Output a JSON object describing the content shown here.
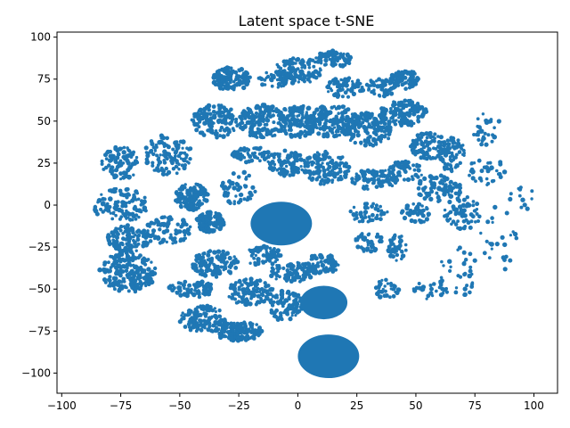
{
  "chart_data": {
    "type": "scatter",
    "title": "Latent space t-SNE",
    "xlabel": "",
    "ylabel": "",
    "xlim": [
      -102,
      110
    ],
    "ylim": [
      -112,
      103
    ],
    "x_ticks": [
      -100,
      -75,
      -50,
      -25,
      0,
      25,
      50,
      75,
      100
    ],
    "y_ticks": [
      -100,
      -75,
      -50,
      -25,
      0,
      25,
      50,
      75,
      100
    ],
    "grid": false,
    "legend": "none",
    "series_color": "#1f77b4",
    "dense_clusters": [
      {
        "cx": -7,
        "cy": -11,
        "rx": 13,
        "ry": 13
      },
      {
        "cx": 11,
        "cy": -58,
        "rx": 10,
        "ry": 10
      },
      {
        "cx": 13,
        "cy": -90,
        "rx": 13,
        "ry": 13
      }
    ],
    "regions": [
      {
        "cx": -72,
        "cy": -40,
        "rx": 12,
        "ry": 12,
        "n": 220
      },
      {
        "cx": -72,
        "cy": -20,
        "rx": 10,
        "ry": 8,
        "n": 110
      },
      {
        "cx": -75,
        "cy": 0,
        "rx": 12,
        "ry": 10,
        "n": 110
      },
      {
        "cx": -75,
        "cy": 25,
        "rx": 8,
        "ry": 10,
        "n": 90
      },
      {
        "cx": -55,
        "cy": 30,
        "rx": 10,
        "ry": 12,
        "n": 110
      },
      {
        "cx": -45,
        "cy": 5,
        "rx": 7,
        "ry": 8,
        "n": 130
      },
      {
        "cx": -55,
        "cy": -15,
        "rx": 10,
        "ry": 8,
        "n": 80
      },
      {
        "cx": -37,
        "cy": -10,
        "rx": 6,
        "ry": 6,
        "n": 110
      },
      {
        "cx": -35,
        "cy": -35,
        "rx": 10,
        "ry": 8,
        "n": 120
      },
      {
        "cx": -45,
        "cy": -50,
        "rx": 10,
        "ry": 5,
        "n": 70
      },
      {
        "cx": -40,
        "cy": -68,
        "rx": 10,
        "ry": 8,
        "n": 110
      },
      {
        "cx": -25,
        "cy": -75,
        "rx": 10,
        "ry": 6,
        "n": 140
      },
      {
        "cx": -20,
        "cy": -52,
        "rx": 10,
        "ry": 8,
        "n": 120
      },
      {
        "cx": -5,
        "cy": -60,
        "rx": 7,
        "ry": 10,
        "n": 90
      },
      {
        "cx": -2,
        "cy": -40,
        "rx": 10,
        "ry": 6,
        "n": 80
      },
      {
        "cx": 10,
        "cy": -35,
        "rx": 8,
        "ry": 6,
        "n": 70
      },
      {
        "cx": -15,
        "cy": -30,
        "rx": 8,
        "ry": 6,
        "n": 60
      },
      {
        "cx": -28,
        "cy": 75,
        "rx": 8,
        "ry": 7,
        "n": 130
      },
      {
        "cx": -10,
        "cy": 75,
        "rx": 7,
        "ry": 5,
        "n": 50
      },
      {
        "cx": 0,
        "cy": 80,
        "rx": 10,
        "ry": 8,
        "n": 110
      },
      {
        "cx": 15,
        "cy": 87,
        "rx": 8,
        "ry": 5,
        "n": 80
      },
      {
        "cx": 20,
        "cy": 70,
        "rx": 8,
        "ry": 6,
        "n": 70
      },
      {
        "cx": -35,
        "cy": 50,
        "rx": 10,
        "ry": 10,
        "n": 140
      },
      {
        "cx": -15,
        "cy": 50,
        "rx": 10,
        "ry": 10,
        "n": 150
      },
      {
        "cx": 0,
        "cy": 50,
        "rx": 8,
        "ry": 10,
        "n": 130
      },
      {
        "cx": 15,
        "cy": 50,
        "rx": 10,
        "ry": 10,
        "n": 150
      },
      {
        "cx": 30,
        "cy": 45,
        "rx": 10,
        "ry": 10,
        "n": 140
      },
      {
        "cx": 45,
        "cy": 55,
        "rx": 10,
        "ry": 8,
        "n": 120
      },
      {
        "cx": 45,
        "cy": 75,
        "rx": 6,
        "ry": 6,
        "n": 80
      },
      {
        "cx": 35,
        "cy": 70,
        "rx": 6,
        "ry": 6,
        "n": 50
      },
      {
        "cx": 55,
        "cy": 35,
        "rx": 8,
        "ry": 8,
        "n": 90
      },
      {
        "cx": 65,
        "cy": 30,
        "rx": 6,
        "ry": 10,
        "n": 70
      },
      {
        "cx": 60,
        "cy": 10,
        "rx": 10,
        "ry": 8,
        "n": 80
      },
      {
        "cx": 70,
        "cy": -5,
        "rx": 8,
        "ry": 10,
        "n": 60
      },
      {
        "cx": 45,
        "cy": 20,
        "rx": 8,
        "ry": 6,
        "n": 60
      },
      {
        "cx": 32,
        "cy": 15,
        "rx": 10,
        "ry": 6,
        "n": 80
      },
      {
        "cx": 12,
        "cy": 22,
        "rx": 10,
        "ry": 10,
        "n": 140
      },
      {
        "cx": -5,
        "cy": 25,
        "rx": 8,
        "ry": 8,
        "n": 90
      },
      {
        "cx": -20,
        "cy": 30,
        "rx": 8,
        "ry": 5,
        "n": 60
      },
      {
        "cx": 30,
        "cy": -5,
        "rx": 8,
        "ry": 6,
        "n": 50
      },
      {
        "cx": 42,
        "cy": -25,
        "rx": 4,
        "ry": 8,
        "n": 40
      },
      {
        "cx": 55,
        "cy": -50,
        "rx": 8,
        "ry": 6,
        "n": 30
      },
      {
        "cx": 38,
        "cy": -50,
        "rx": 5,
        "ry": 6,
        "n": 30
      },
      {
        "cx": 80,
        "cy": 20,
        "rx": 8,
        "ry": 8,
        "n": 35
      },
      {
        "cx": 80,
        "cy": 45,
        "rx": 6,
        "ry": 10,
        "n": 30
      },
      {
        "cx": 68,
        "cy": -40,
        "rx": 8,
        "ry": 15,
        "n": 35
      },
      {
        "cx": 85,
        "cy": -20,
        "rx": 8,
        "ry": 20,
        "n": 25
      },
      {
        "cx": 95,
        "cy": 5,
        "rx": 6,
        "ry": 10,
        "n": 12
      },
      {
        "cx": -25,
        "cy": 10,
        "rx": 8,
        "ry": 10,
        "n": 50
      },
      {
        "cx": 30,
        "cy": -22,
        "rx": 6,
        "ry": 6,
        "n": 40
      },
      {
        "cx": 50,
        "cy": -5,
        "rx": 6,
        "ry": 6,
        "n": 40
      }
    ]
  }
}
